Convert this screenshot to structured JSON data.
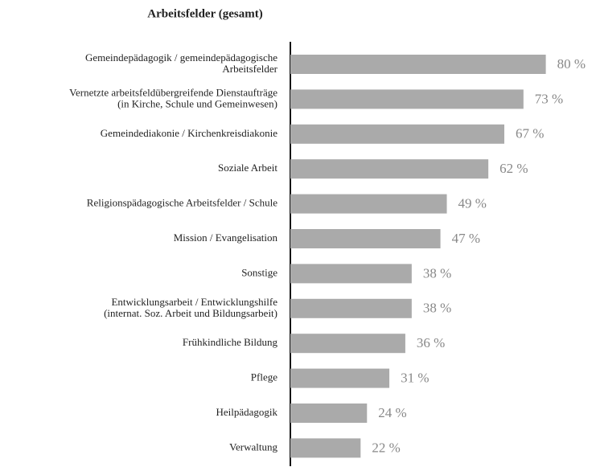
{
  "chart_data": {
    "type": "bar",
    "orientation": "horizontal",
    "title": "Arbeitsfelder (gesamt)",
    "categories": [
      "Gemeindepädagogik / gemeindepädagogische\nArbeitsfelder",
      "Vernetzte arbeitsfeldübergreifende Dienstaufträge\n(in Kirche, Schule und Gemeinwesen)",
      "Gemeindediakonie / Kirchenkreisdiakonie",
      "Soziale Arbeit",
      "Religionspädagogische Arbeitsfelder / Schule",
      "Mission / Evangelisation",
      "Sonstige",
      "Entwicklungsarbeit / Entwicklungshilfe\n(internat. Soz. Arbeit und Bildungsarbeit)",
      "Frühkindliche Bildung",
      "Pflege",
      "Heilpädagogik",
      "Verwaltung"
    ],
    "values": [
      80,
      73,
      67,
      62,
      49,
      47,
      38,
      38,
      36,
      31,
      24,
      22
    ],
    "value_labels": [
      "80 %",
      "73 %",
      "67 %",
      "62 %",
      "49 %",
      "47 %",
      "38 %",
      "38 %",
      "36 %",
      "31 %",
      "24 %",
      "22 %"
    ],
    "color": "#aaaaaa"
  }
}
